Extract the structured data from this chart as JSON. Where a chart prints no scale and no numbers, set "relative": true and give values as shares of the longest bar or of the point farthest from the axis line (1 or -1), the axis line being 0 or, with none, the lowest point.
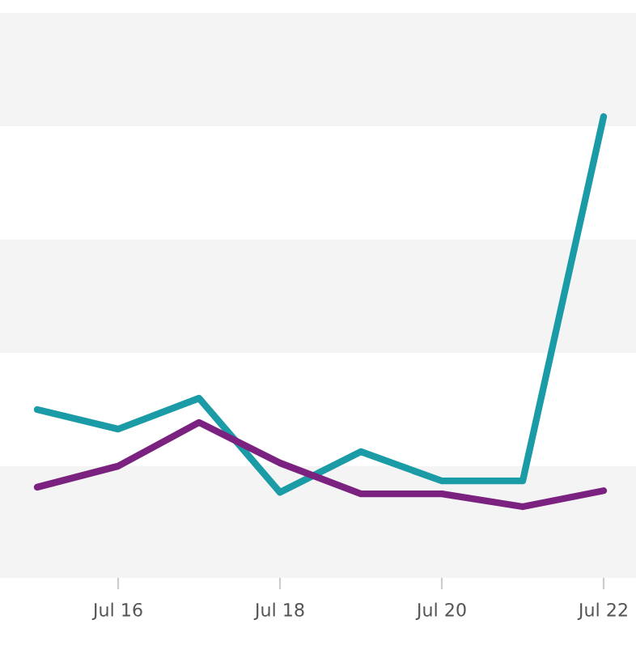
{
  "chart_data": {
    "type": "line",
    "relative": true,
    "marker": "none",
    "line_style": "solid",
    "categories": [
      null,
      "Jul 16",
      null,
      "Jul 18",
      null,
      "Jul 20",
      null,
      "Jul 22"
    ],
    "series": [
      {
        "color": "#1a9ba6",
        "values": [
          0.249,
          0.199,
          0.278,
          0.037,
          0.141,
          0.066,
          0.066,
          1
        ]
      },
      {
        "color": "#7b2180",
        "values": [
          0.05,
          0.104,
          0.216,
          0.112,
          0.033,
          0.033,
          0,
          0.041
        ]
      }
    ],
    "bands": [
      {
        "axis": "y",
        "from": -0.183,
        "to": 0.104,
        "color": "#f4f4f4"
      },
      {
        "axis": "y",
        "from": 0.394,
        "to": 0.685,
        "color": "#f4f4f4"
      },
      {
        "axis": "y",
        "from": 0.975,
        "to": 1.266,
        "color": "#f4f4f4"
      }
    ]
  }
}
